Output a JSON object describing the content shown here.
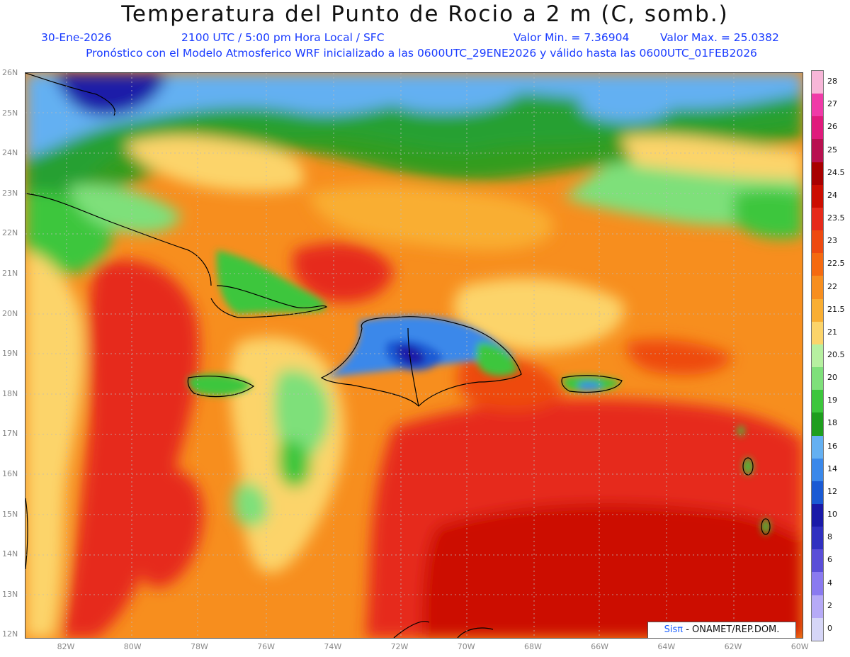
{
  "title": "Temperatura del Punto de Rocio a 2 m (C, somb.)",
  "header": {
    "date": "30-Ene-2026",
    "time": "2100 UTC / 5:00 pm Hora Local / SFC",
    "min": "Valor Min. = 7.36904",
    "max": "Valor Max. = 25.0382",
    "model": "Pronóstico con el Modelo Atmosferico WRF inicializado a las 0600UTC_29ENE2026 y válido hasta las  0600UTC_01FEB2026"
  },
  "lat_labels": [
    "26N",
    "25N",
    "24N",
    "23N",
    "22N",
    "21N",
    "20N",
    "19N",
    "18N",
    "17N",
    "16N",
    "15N",
    "14N",
    "13N",
    "12N"
  ],
  "lon_labels": [
    "82W",
    "80W",
    "78W",
    "76W",
    "74W",
    "72W",
    "70W",
    "68W",
    "66W",
    "64W",
    "62W",
    "60W"
  ],
  "legend": {
    "labels": [
      "28",
      "27",
      "26",
      "25",
      "24.5",
      "24",
      "23.5",
      "23",
      "22.5",
      "22",
      "21.5",
      "21",
      "20.5",
      "20",
      "19",
      "18",
      "16",
      "14",
      "12",
      "10",
      "8",
      "6",
      "4",
      "2",
      "0"
    ],
    "colors": [
      "#f7b6d8",
      "#f03aa8",
      "#e01a7c",
      "#b8104f",
      "#a80000",
      "#cc0d00",
      "#e62a1a",
      "#ee4a10",
      "#f56a10",
      "#f78e1e",
      "#f9ae32",
      "#fcd46a",
      "#b6f0a0",
      "#7ee07a",
      "#3cc63c",
      "#1e9e1e",
      "#64b0f2",
      "#3a88ea",
      "#1a5ad4",
      "#1a1aa8",
      "#3030c0",
      "#5a4ed8",
      "#8a7af0",
      "#b6aaf7",
      "#d6d6f7"
    ]
  },
  "colors": {
    "deep_red": "#cc0d00",
    "red": "#e62a1a",
    "orange": "#f78e1e",
    "yellow": "#fcd46a",
    "light_green": "#7ee07a",
    "green": "#3cc63c",
    "dark_green": "#1e9e1e",
    "light_blue": "#64b0f2",
    "blue": "#3a88ea",
    "dark_blue": "#1a1aa8"
  },
  "credit": {
    "sis": "Sisπ",
    "text": " - ONAMET/REP.DOM."
  }
}
